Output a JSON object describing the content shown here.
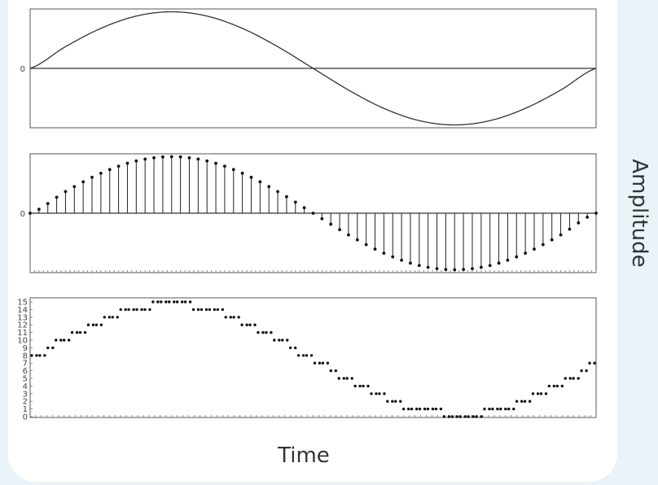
{
  "chart_data": [
    {
      "type": "line",
      "xlabel": "",
      "ylabel": "",
      "y_tick_labels": [
        "0"
      ],
      "x": [
        0,
        0.0625,
        0.125,
        0.1875,
        0.25,
        0.3125,
        0.375,
        0.4375,
        0.5,
        0.5625,
        0.625,
        0.6875,
        0.75,
        0.8125,
        0.875,
        0.9375,
        1
      ],
      "y": [
        0,
        0.383,
        0.707,
        0.924,
        1,
        0.924,
        0.707,
        0.383,
        0,
        -0.383,
        -0.707,
        -0.924,
        -1,
        -0.924,
        -0.707,
        -0.383,
        0
      ],
      "ylim": [
        -1.05,
        1.05
      ],
      "grid": false
    },
    {
      "type": "scatter",
      "style": "stem",
      "xlabel": "",
      "ylabel": "",
      "y_tick_labels": [
        "0"
      ],
      "sample_count": 64,
      "x": [
        0,
        0.0625,
        0.125,
        0.1875,
        0.25,
        0.3125,
        0.375,
        0.4375,
        0.5,
        0.5625,
        0.625,
        0.6875,
        0.75,
        0.8125,
        0.875,
        0.9375,
        1
      ],
      "y": [
        0,
        0.383,
        0.707,
        0.924,
        1,
        0.924,
        0.707,
        0.383,
        0,
        -0.383,
        -0.707,
        -0.924,
        -1,
        -0.924,
        -0.707,
        -0.383,
        0
      ],
      "ylim": [
        -1.05,
        1.05
      ],
      "grid": false
    },
    {
      "type": "scatter",
      "xlabel": "Time",
      "ylabel": "Amplitude",
      "y_tick_labels": [
        "0",
        "1",
        "2",
        "3",
        "4",
        "5",
        "6",
        "7",
        "8",
        "9",
        "10",
        "11",
        "12",
        "13",
        "14",
        "15"
      ],
      "ylim": [
        0,
        15
      ],
      "values": [
        8,
        8,
        9,
        10,
        10,
        11,
        11,
        12,
        12,
        13,
        13,
        14,
        14,
        14,
        14,
        15,
        15,
        15,
        15,
        15,
        14,
        14,
        14,
        14,
        13,
        13,
        12,
        12,
        11,
        11,
        10,
        10,
        9,
        8,
        8,
        7,
        7,
        6,
        5,
        5,
        4,
        4,
        3,
        3,
        2,
        2,
        1,
        1,
        1,
        1,
        1,
        0,
        0,
        0,
        0,
        0,
        1,
        1,
        1,
        1,
        2,
        2,
        3,
        3,
        4,
        4,
        5,
        5,
        6,
        7
      ],
      "grid": false
    }
  ],
  "labels": {
    "xlabel": "Time",
    "ylabel": "Amplitude"
  }
}
